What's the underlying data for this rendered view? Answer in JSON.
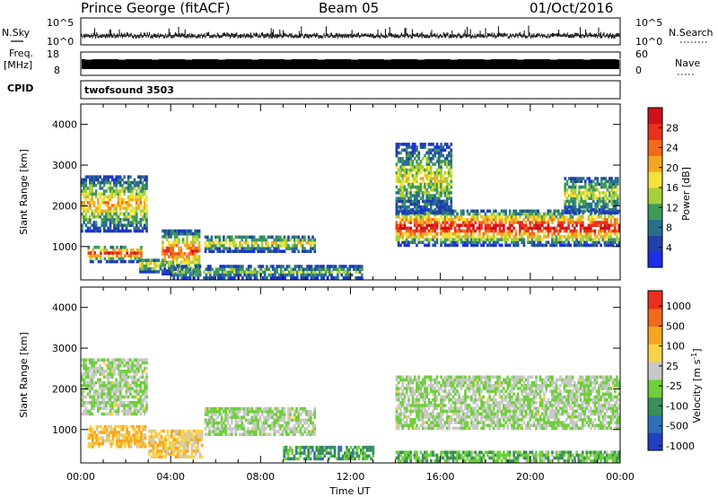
{
  "header": {
    "station": "Prince George (fitACF)",
    "beam": "Beam 05",
    "date": "01/Oct/2016"
  },
  "strips": {
    "nsky": {
      "label": "N.Sky",
      "left_top": "10^5",
      "left_bottom": "10^0"
    },
    "nsearch": {
      "label": "N.Search",
      "right_top": "10^5",
      "right_bottom": "10^0"
    },
    "freq": {
      "label_line1": "Freq.",
      "label_line2": "[MHz]",
      "left_top": "18",
      "left_bottom": "8"
    },
    "nave": {
      "label": "Nave",
      "right_top": "60",
      "right_bottom": "0"
    },
    "cpid": {
      "label": "CPID",
      "value": "twofsound 3503"
    }
  },
  "chart_data": [
    {
      "type": "heatmap",
      "name": "power",
      "ylabel": "Slant Range [km]",
      "yticks": [
        "1000",
        "2000",
        "3000",
        "4000"
      ],
      "ylim": [
        180,
        4500
      ],
      "xlim": [
        0,
        24
      ],
      "colorbar": {
        "label": "Power [dB]",
        "ticks": [
          "4",
          "8",
          "12",
          "16",
          "20",
          "24",
          "28"
        ],
        "colors": [
          "#1a2fe6",
          "#2140a8",
          "#2a6f8a",
          "#3f9a58",
          "#a6cf3c",
          "#f2e23a",
          "#f5a623",
          "#f06a1e",
          "#e8301f",
          "#d0101a"
        ]
      },
      "echo_bands": [
        {
          "t": [
            0.0,
            2.9
          ],
          "r": [
            1350,
            2700
          ],
          "level": 0.55
        },
        {
          "t": [
            0.3,
            2.7
          ],
          "r": [
            600,
            1000
          ],
          "level": 0.75
        },
        {
          "t": [
            2.6,
            3.7
          ],
          "r": [
            350,
            700
          ],
          "level": 0.45
        },
        {
          "t": [
            3.6,
            5.3
          ],
          "r": [
            300,
            1400
          ],
          "level": 0.7
        },
        {
          "t": [
            5.5,
            10.4
          ],
          "r": [
            850,
            1250
          ],
          "level": 0.45
        },
        {
          "t": [
            4.0,
            12.5
          ],
          "r": [
            200,
            500
          ],
          "level": 0.3
        },
        {
          "t": [
            14.0,
            23.9
          ],
          "r": [
            1000,
            1900
          ],
          "level": 0.85
        },
        {
          "t": [
            14.0,
            16.5
          ],
          "r": [
            1800,
            3500
          ],
          "level": 0.4
        },
        {
          "t": [
            21.5,
            23.9
          ],
          "r": [
            1800,
            2700
          ],
          "level": 0.4
        }
      ]
    },
    {
      "type": "heatmap",
      "name": "velocity",
      "ylabel": "Slant Range [km]",
      "yticks": [
        "1000",
        "2000",
        "3000",
        "4000"
      ],
      "ylim": [
        180,
        4500
      ],
      "xlim": [
        0,
        24
      ],
      "xlabel": "Time UT",
      "xticks": [
        "00:00",
        "04:00",
        "08:00",
        "12:00",
        "16:00",
        "20:00",
        "00:00"
      ],
      "colorbar": {
        "label": "Velocity [m s^-1]",
        "ticks": [
          "1000",
          "500",
          "100",
          "25",
          "-25",
          "-100",
          "-500",
          "-1000"
        ],
        "colors": [
          "#2040c0",
          "#2f6fb8",
          "#3a8f5a",
          "#6fcf3c",
          "#c8c8c8",
          "#f7d24a",
          "#f5a623",
          "#f06a1e",
          "#e8301f"
        ]
      },
      "echo_bands": [
        {
          "t": [
            0.0,
            2.9
          ],
          "r": [
            1350,
            2700
          ],
          "level": 0.45
        },
        {
          "t": [
            0.3,
            2.9
          ],
          "r": [
            550,
            1100
          ],
          "level": 0.65
        },
        {
          "t": [
            3.0,
            5.4
          ],
          "r": [
            300,
            1000
          ],
          "level": 0.62
        },
        {
          "t": [
            5.5,
            10.4
          ],
          "r": [
            850,
            1500
          ],
          "level": 0.45
        },
        {
          "t": [
            9.0,
            13.0
          ],
          "r": [
            250,
            550
          ],
          "level": 0.3
        },
        {
          "t": [
            14.0,
            23.9
          ],
          "r": [
            1000,
            2300
          ],
          "level": 0.45
        },
        {
          "t": [
            14.0,
            23.9
          ],
          "r": [
            200,
            450
          ],
          "level": 0.35
        }
      ]
    }
  ]
}
